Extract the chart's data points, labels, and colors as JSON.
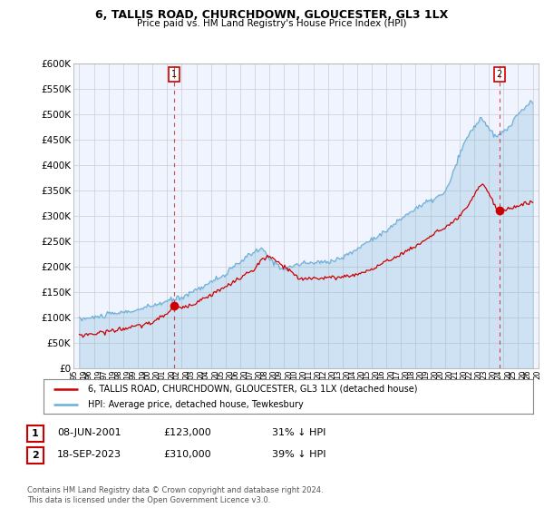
{
  "title": "6, TALLIS ROAD, CHURCHDOWN, GLOUCESTER, GL3 1LX",
  "subtitle": "Price paid vs. HM Land Registry's House Price Index (HPI)",
  "hpi_label": "HPI: Average price, detached house, Tewkesbury",
  "property_label": "6, TALLIS ROAD, CHURCHDOWN, GLOUCESTER, GL3 1LX (detached house)",
  "hpi_color": "#6baed6",
  "hpi_fill_color": "#ddeeff",
  "property_color": "#cc0000",
  "marker1_date": "08-JUN-2001",
  "marker1_price": 123000,
  "marker1_pct": "31% ↓ HPI",
  "marker1_x": 2001.458,
  "marker1_y": 123000,
  "marker2_date": "18-SEP-2023",
  "marker2_price": 310000,
  "marker2_pct": "39% ↓ HPI",
  "marker2_x": 2023.708,
  "marker2_y": 310000,
  "ylim": [
    0,
    600000
  ],
  "yticks": [
    0,
    50000,
    100000,
    150000,
    200000,
    250000,
    300000,
    350000,
    400000,
    450000,
    500000,
    550000,
    600000
  ],
  "xlim_start": 1994.6,
  "xlim_end": 2026.4,
  "footer": "Contains HM Land Registry data © Crown copyright and database right 2024.\nThis data is licensed under the Open Government Licence v3.0.",
  "background_color": "#ffffff",
  "chart_bg_color": "#f0f4ff",
  "grid_color": "#cccccc",
  "hpi_keypoints_x": [
    1995,
    1996,
    1997,
    1998,
    1999,
    2000,
    2001,
    2002,
    2003,
    2004,
    2005,
    2006,
    2007,
    2007.5,
    2008,
    2009,
    2009.5,
    2010,
    2011,
    2012,
    2013,
    2014,
    2015,
    2016,
    2017,
    2018,
    2019,
    2020,
    2020.5,
    2021,
    2021.5,
    2022,
    2022.5,
    2023,
    2023.5,
    2024,
    2024.5,
    2025,
    2025.5,
    2026
  ],
  "hpi_keypoints_y": [
    97000,
    100000,
    106000,
    110000,
    115000,
    123000,
    132000,
    140000,
    155000,
    170000,
    185000,
    210000,
    230000,
    235000,
    215000,
    195000,
    200000,
    205000,
    208000,
    210000,
    218000,
    235000,
    255000,
    270000,
    295000,
    315000,
    330000,
    345000,
    380000,
    420000,
    455000,
    475000,
    495000,
    470000,
    455000,
    465000,
    480000,
    500000,
    515000,
    525000
  ],
  "prop_keypoints_x": [
    1995,
    1996,
    1997,
    1998,
    1999,
    2000,
    2001,
    2001.458,
    2002,
    2003,
    2004,
    2005,
    2006,
    2007,
    2007.5,
    2008,
    2009,
    2009.5,
    2010,
    2011,
    2012,
    2013,
    2014,
    2015,
    2016,
    2017,
    2018,
    2019,
    2019.5,
    2020,
    2020.5,
    2021,
    2021.5,
    2022,
    2022.3,
    2022.6,
    2023,
    2023.5,
    2023.708,
    2024,
    2024.5,
    2025,
    2025.5,
    2026
  ],
  "prop_keypoints_y": [
    65000,
    68000,
    73000,
    78000,
    83000,
    90000,
    108000,
    123000,
    118000,
    130000,
    145000,
    160000,
    178000,
    195000,
    215000,
    220000,
    200000,
    190000,
    175000,
    178000,
    178000,
    180000,
    185000,
    195000,
    210000,
    225000,
    240000,
    260000,
    270000,
    275000,
    285000,
    300000,
    315000,
    340000,
    355000,
    365000,
    345000,
    315000,
    310000,
    310000,
    315000,
    320000,
    325000,
    328000
  ]
}
